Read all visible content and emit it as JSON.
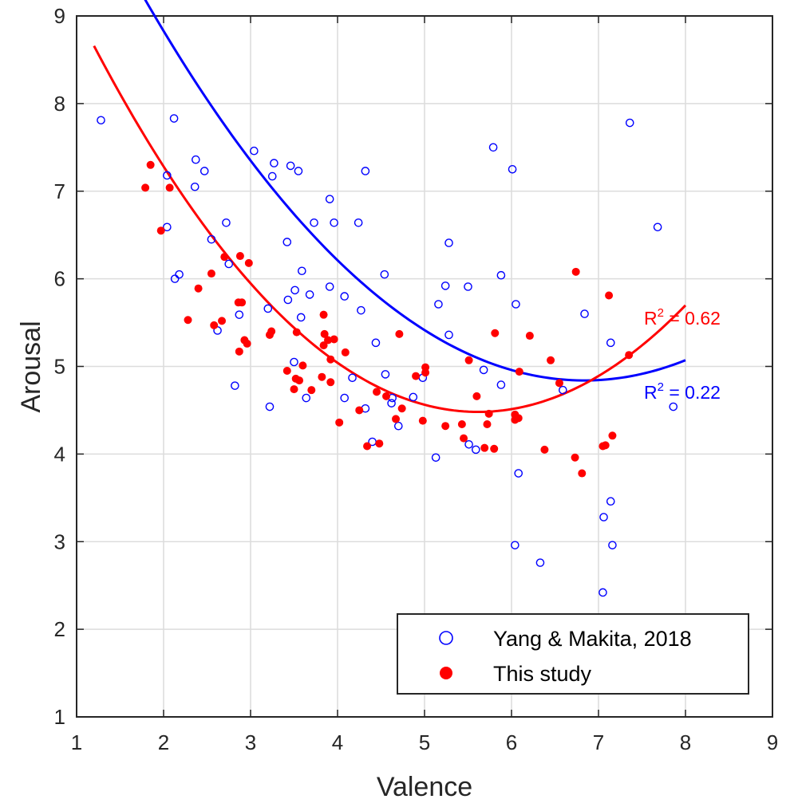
{
  "chart_data": {
    "type": "scatter",
    "title": "",
    "xlabel": "Valence",
    "ylabel": "Arousal",
    "xlim": [
      1,
      9
    ],
    "ylim": [
      1,
      9
    ],
    "xticks": [
      "1",
      "2",
      "3",
      "4",
      "5",
      "6",
      "7",
      "8",
      "9"
    ],
    "yticks": [
      "1",
      "2",
      "3",
      "4",
      "5",
      "6",
      "7",
      "8",
      "9"
    ],
    "grid": true,
    "legend_position": "bottom-right",
    "series": [
      {
        "name": "Yang & Makita, 2018",
        "marker": "open-circle",
        "color": "#0000ff",
        "points": [
          [
            1.28,
            7.81
          ],
          [
            2.12,
            7.83
          ],
          [
            2.04,
            7.18
          ],
          [
            2.37,
            7.36
          ],
          [
            2.47,
            7.23
          ],
          [
            2.36,
            7.05
          ],
          [
            2.04,
            6.59
          ],
          [
            2.13,
            6.0
          ],
          [
            2.18,
            6.05
          ],
          [
            2.55,
            6.45
          ],
          [
            2.72,
            6.64
          ],
          [
            2.75,
            6.17
          ],
          [
            2.62,
            5.41
          ],
          [
            2.87,
            5.59
          ],
          [
            2.82,
            4.78
          ],
          [
            3.04,
            7.46
          ],
          [
            3.27,
            7.32
          ],
          [
            3.46,
            7.29
          ],
          [
            3.55,
            7.23
          ],
          [
            3.25,
            7.17
          ],
          [
            3.42,
            6.42
          ],
          [
            3.59,
            6.09
          ],
          [
            3.51,
            5.87
          ],
          [
            3.43,
            5.76
          ],
          [
            3.68,
            5.82
          ],
          [
            3.58,
            5.56
          ],
          [
            3.2,
            5.66
          ],
          [
            3.5,
            5.05
          ],
          [
            3.22,
            4.54
          ],
          [
            3.64,
            4.64
          ],
          [
            3.91,
            6.91
          ],
          [
            3.73,
            6.64
          ],
          [
            3.96,
            6.64
          ],
          [
            3.91,
            5.91
          ],
          [
            4.08,
            5.8
          ],
          [
            4.24,
            6.64
          ],
          [
            4.32,
            7.23
          ],
          [
            4.54,
            6.05
          ],
          [
            4.27,
            5.64
          ],
          [
            4.44,
            5.27
          ],
          [
            4.17,
            4.87
          ],
          [
            4.08,
            4.64
          ],
          [
            4.32,
            4.52
          ],
          [
            4.55,
            4.91
          ],
          [
            4.63,
            4.64
          ],
          [
            4.7,
            4.32
          ],
          [
            4.4,
            4.14
          ],
          [
            4.62,
            4.58
          ],
          [
            4.87,
            4.65
          ],
          [
            4.98,
            4.87
          ],
          [
            5.16,
            5.71
          ],
          [
            5.28,
            6.41
          ],
          [
            5.24,
            5.92
          ],
          [
            5.28,
            5.36
          ],
          [
            5.5,
            5.91
          ],
          [
            5.13,
            3.96
          ],
          [
            5.51,
            4.11
          ],
          [
            5.59,
            4.05
          ],
          [
            5.79,
            7.5
          ],
          [
            6.01,
            7.25
          ],
          [
            5.88,
            6.04
          ],
          [
            6.05,
            5.71
          ],
          [
            5.68,
            4.96
          ],
          [
            5.88,
            4.79
          ],
          [
            6.08,
            3.78
          ],
          [
            6.04,
            2.96
          ],
          [
            6.33,
            2.76
          ],
          [
            6.59,
            4.73
          ],
          [
            6.84,
            5.6
          ],
          [
            7.36,
            7.78
          ],
          [
            7.68,
            6.59
          ],
          [
            7.14,
            5.27
          ],
          [
            7.86,
            4.54
          ],
          [
            7.14,
            3.46
          ],
          [
            7.06,
            3.28
          ],
          [
            7.16,
            2.96
          ],
          [
            7.05,
            2.42
          ]
        ],
        "fit_label": "R² = 0.22",
        "fit": {
          "type": "quadratic",
          "a": 0.1706,
          "b": -2.3323,
          "c": 12.811,
          "xrange": [
            1.2,
            8.0
          ]
        }
      },
      {
        "name": "This study",
        "marker": "filled-circle",
        "color": "#ff0000",
        "points": [
          [
            1.85,
            7.3
          ],
          [
            1.79,
            7.04
          ],
          [
            2.07,
            7.04
          ],
          [
            1.97,
            6.55
          ],
          [
            2.55,
            6.06
          ],
          [
            2.4,
            5.89
          ],
          [
            2.28,
            5.53
          ],
          [
            2.7,
            6.25
          ],
          [
            2.88,
            6.26
          ],
          [
            2.98,
            6.18
          ],
          [
            2.86,
            5.73
          ],
          [
            2.9,
            5.73
          ],
          [
            2.58,
            5.47
          ],
          [
            2.67,
            5.52
          ],
          [
            2.87,
            5.17
          ],
          [
            2.93,
            5.3
          ],
          [
            2.96,
            5.26
          ],
          [
            3.24,
            5.4
          ],
          [
            3.22,
            5.36
          ],
          [
            3.53,
            5.39
          ],
          [
            3.6,
            5.01
          ],
          [
            3.42,
            4.95
          ],
          [
            3.52,
            4.86
          ],
          [
            3.5,
            4.74
          ],
          [
            3.56,
            4.84
          ],
          [
            3.7,
            4.73
          ],
          [
            3.84,
            5.59
          ],
          [
            3.85,
            5.37
          ],
          [
            3.89,
            5.3
          ],
          [
            3.96,
            5.31
          ],
          [
            3.84,
            5.24
          ],
          [
            3.92,
            5.08
          ],
          [
            3.82,
            4.88
          ],
          [
            3.92,
            4.82
          ],
          [
            4.02,
            4.36
          ],
          [
            4.09,
            5.16
          ],
          [
            4.25,
            4.5
          ],
          [
            4.34,
            4.09
          ],
          [
            4.48,
            4.12
          ],
          [
            4.45,
            4.71
          ],
          [
            4.56,
            4.66
          ],
          [
            4.71,
            5.37
          ],
          [
            4.67,
            4.4
          ],
          [
            4.74,
            4.52
          ],
          [
            4.9,
            4.89
          ],
          [
            5.01,
            4.99
          ],
          [
            5.01,
            4.93
          ],
          [
            4.98,
            4.38
          ],
          [
            5.24,
            4.32
          ],
          [
            5.43,
            4.34
          ],
          [
            5.45,
            4.18
          ],
          [
            5.51,
            5.07
          ],
          [
            5.6,
            4.66
          ],
          [
            5.69,
            4.07
          ],
          [
            5.74,
            4.46
          ],
          [
            5.72,
            4.34
          ],
          [
            5.8,
            4.06
          ],
          [
            5.81,
            5.38
          ],
          [
            6.04,
            4.39
          ],
          [
            6.08,
            4.41
          ],
          [
            6.09,
            4.94
          ],
          [
            6.04,
            4.45
          ],
          [
            6.21,
            5.35
          ],
          [
            6.45,
            5.07
          ],
          [
            6.38,
            4.05
          ],
          [
            6.55,
            4.81
          ],
          [
            6.74,
            6.08
          ],
          [
            6.73,
            3.96
          ],
          [
            6.81,
            3.78
          ],
          [
            7.12,
            5.81
          ],
          [
            7.08,
            4.1
          ],
          [
            7.05,
            4.09
          ],
          [
            7.16,
            4.21
          ],
          [
            7.35,
            5.13
          ]
        ],
        "fit_label": "R² = 0.62",
        "fit": {
          "type": "quadratic",
          "a": 0.2141,
          "b": -2.4052,
          "c": 11.236,
          "xrange": [
            1.2,
            8.0
          ]
        }
      }
    ]
  }
}
